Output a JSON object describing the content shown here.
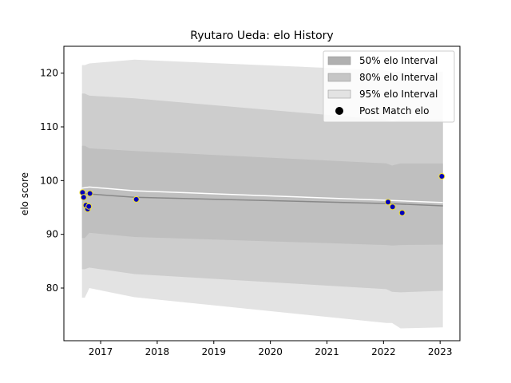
{
  "chart_data": {
    "type": "area",
    "title": "Ryutaro Ueda: elo History",
    "xlabel": "",
    "ylabel": "elo score",
    "xlim": [
      2016.35,
      2023.35
    ],
    "ylim": [
      70.2,
      125.0
    ],
    "x_ticks": [
      2017,
      2018,
      2019,
      2020,
      2021,
      2022,
      2023
    ],
    "y_ticks": [
      80,
      90,
      100,
      110,
      120
    ],
    "grid": false,
    "legend_position": "top-right",
    "legend": [
      {
        "label": "50% elo Interval",
        "kind": "band",
        "color": "#b0b0b0"
      },
      {
        "label": "80% elo Interval",
        "kind": "band",
        "color": "#c6c6c6"
      },
      {
        "label": "95% elo Interval",
        "kind": "band",
        "color": "#e3e3e3"
      },
      {
        "label": "Post Match elo",
        "kind": "marker",
        "color": "#000000"
      }
    ],
    "bands": {
      "x": [
        2016.67,
        2016.72,
        2016.8,
        2017.6,
        2022.05,
        2022.15,
        2022.3,
        2023.05
      ],
      "ci95_lo": [
        78.2,
        78.2,
        80.0,
        78.3,
        73.5,
        73.5,
        72.5,
        72.7
      ],
      "ci95_hi": [
        121.5,
        121.5,
        121.8,
        122.5,
        120.5,
        120.2,
        120.3,
        120.3
      ],
      "ci80_lo": [
        83.5,
        83.5,
        83.8,
        82.6,
        79.8,
        79.3,
        79.2,
        79.5
      ],
      "ci80_hi": [
        116.2,
        116.2,
        115.8,
        115.3,
        111.3,
        111.0,
        111.3,
        111.3
      ],
      "ci50_lo": [
        89.3,
        89.3,
        90.3,
        89.5,
        88.0,
        87.9,
        88.0,
        88.1
      ],
      "ci50_hi": [
        106.5,
        106.5,
        106.0,
        105.5,
        103.2,
        102.8,
        103.2,
        103.2
      ]
    },
    "mean_line": {
      "x": [
        2016.67,
        2017.6,
        2022.15,
        2023.05
      ],
      "y": [
        97.6,
        96.9,
        95.7,
        95.3
      ],
      "color": "#888888"
    },
    "white_line": {
      "x": [
        2016.67,
        2016.8,
        2017.6,
        2022.15,
        2023.05
      ],
      "y": [
        98.6,
        98.8,
        98.1,
        96.3,
        95.9
      ],
      "color": "#ffffff"
    },
    "points": {
      "name": "Post Match elo",
      "fill": "#0000bb",
      "edge": "#f0e030",
      "x": [
        2016.68,
        2016.7,
        2016.74,
        2016.77,
        2016.79,
        2016.81,
        2017.63,
        2022.08,
        2022.16,
        2022.33,
        2023.03
      ],
      "y": [
        97.8,
        96.9,
        95.4,
        94.7,
        95.2,
        97.6,
        96.5,
        96.0,
        95.1,
        94.0,
        100.8
      ]
    }
  }
}
